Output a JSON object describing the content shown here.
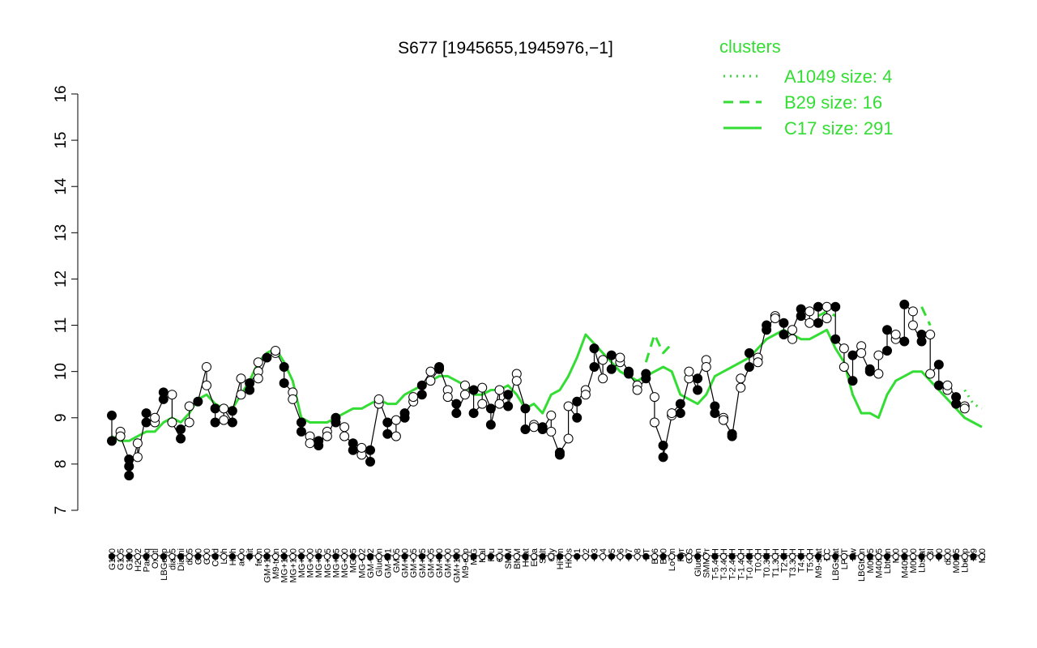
{
  "chart_data": {
    "type": "line",
    "title": "S677 [1945655,1945976,−1]",
    "xlabel": "",
    "ylabel": "",
    "ylim": [
      7,
      16
    ],
    "yticks": [
      7,
      8,
      9,
      10,
      11,
      12,
      13,
      14,
      15,
      16
    ],
    "grid": false,
    "legend": {
      "title": "clusters",
      "position": "top-right",
      "color": "#33dd33",
      "entries": [
        {
          "label": "A1049 size: 4",
          "style": "dotted"
        },
        {
          "label": "B29 size: 16",
          "style": "dashed"
        },
        {
          "label": "C17 size: 291",
          "style": "solid"
        }
      ]
    },
    "x_tick_labels": [
      "G150",
      "G135",
      "G180",
      "H2O2",
      "Paraq",
      "Oxctl",
      "LBGexp",
      "dia15",
      "Diami",
      "dia5",
      "C30",
      "C90",
      "Cold",
      "LPh",
      "HPh",
      "aero",
      "nit",
      "ferm",
      "GM+150",
      "M9-tran",
      "MG+150",
      "MG+120",
      "MG+90",
      "MG+60",
      "MG+45",
      "MG+25",
      "MG+15",
      "MG+10",
      "MG+5",
      "MG-0.2",
      "GM-0.2",
      "Glucon",
      "GM-0.1",
      "GM+5",
      "GM+10",
      "GM+15",
      "GM+25",
      "GM+45",
      "GM+60",
      "GM+90",
      "GM+120",
      "M9-exp",
      "M/G",
      "Mal",
      "Fru",
      "Glu",
      "SMM",
      "BMM",
      "Heat",
      "Etha",
      "Salt",
      "Gly",
      "HiTm",
      "HiOs",
      "S1",
      "S2",
      "S3",
      "S4",
      "S5",
      "S6",
      "S7",
      "S8",
      "BT",
      "B36",
      "B60",
      "LoTm",
      "Pyr",
      "G/S",
      "Glucon",
      "SMMPr",
      "T-5.40H",
      "T-3.40H",
      "T-2.40H",
      "T-1.40H",
      "T-0.40H",
      "T0.0H",
      "T0.30H",
      "T1.30H",
      "T2.0H",
      "T3.30H",
      "T4.0H",
      "T5.0H",
      "M9-stat",
      "BC",
      "LBGstat",
      "LPhT",
      "Sw",
      "LBGtran",
      "M0t45",
      "M40t45",
      "Lbtran",
      "Mt0",
      "M40t90",
      "M0t90",
      "Lbstat",
      "BI",
      "S0",
      "dia0",
      "M0t45",
      "Lbexp",
      "M9",
      "Mt0"
    ],
    "series": [
      {
        "style": "solid",
        "color": "#33dd33",
        "values": [
          8.6,
          8.5,
          8.5,
          8.6,
          8.7,
          8.7,
          8.9,
          9.0,
          8.9,
          9.1,
          9.4,
          9.5,
          9.3,
          9.2,
          9.2,
          9.5,
          9.8,
          10.2,
          10.4,
          10.5,
          10.2,
          9.8,
          9.0,
          8.9,
          8.9,
          8.9,
          9.0,
          9.1,
          9.2,
          9.2,
          9.3,
          9.4,
          9.3,
          9.3,
          9.5,
          9.6,
          9.7,
          9.8,
          9.9,
          9.9,
          9.8,
          9.7,
          9.5,
          9.5,
          9.6,
          9.6,
          9.7,
          9.5,
          9.2,
          9.3,
          9.1,
          9.5,
          9.6,
          9.9,
          10.3,
          10.8,
          10.6,
          10.4,
          10.2,
          10.0,
          9.9,
          9.8,
          9.9,
          10.0,
          10.1,
          10.0,
          9.5,
          9.4,
          9.3,
          9.5,
          9.9,
          10.0,
          10.1,
          10.2,
          10.3,
          10.5,
          10.7,
          10.8,
          10.9,
          10.8,
          10.7,
          10.7,
          10.8,
          10.9,
          10.5,
          10.2,
          9.5,
          9.1,
          9.1,
          9.0,
          9.5,
          9.8,
          9.9,
          10.0,
          10.0,
          9.8,
          9.6,
          9.4,
          9.2,
          9.0,
          8.9,
          8.8
        ]
      },
      {
        "style": "dashed",
        "color": "#33dd33",
        "values": [
          null,
          null,
          null,
          null,
          null,
          null,
          null,
          null,
          null,
          null,
          null,
          null,
          null,
          null,
          null,
          null,
          null,
          null,
          null,
          null,
          null,
          null,
          null,
          null,
          null,
          null,
          null,
          null,
          null,
          null,
          null,
          null,
          null,
          null,
          null,
          null,
          null,
          null,
          null,
          null,
          null,
          null,
          null,
          null,
          null,
          null,
          null,
          null,
          null,
          null,
          null,
          null,
          null,
          null,
          null,
          null,
          null,
          null,
          null,
          null,
          null,
          null,
          10.2,
          10.8,
          10.4,
          10.6,
          null,
          null,
          null,
          null,
          null,
          null,
          null,
          null,
          null,
          null,
          null,
          null,
          null,
          null,
          null,
          null,
          11.2,
          11.3,
          11.2,
          null,
          null,
          null,
          null,
          null,
          null,
          null,
          null,
          null,
          11.4,
          11.0,
          null,
          null,
          null,
          null,
          null,
          null
        ]
      },
      {
        "style": "dotted",
        "color": "#33dd33",
        "values": [
          null,
          null,
          null,
          null,
          null,
          null,
          null,
          null,
          null,
          null,
          null,
          null,
          null,
          null,
          null,
          null,
          null,
          null,
          null,
          null,
          null,
          null,
          null,
          null,
          null,
          null,
          null,
          null,
          null,
          null,
          null,
          null,
          null,
          null,
          null,
          null,
          null,
          null,
          null,
          null,
          null,
          null,
          null,
          null,
          null,
          null,
          null,
          null,
          null,
          null,
          null,
          null,
          null,
          null,
          null,
          null,
          null,
          null,
          null,
          null,
          null,
          null,
          null,
          null,
          null,
          null,
          null,
          null,
          null,
          null,
          null,
          null,
          null,
          null,
          null,
          null,
          null,
          null,
          null,
          null,
          null,
          null,
          null,
          null,
          null,
          null,
          null,
          null,
          null,
          null,
          null,
          null,
          null,
          null,
          null,
          null,
          null,
          null,
          null,
          9.6,
          9.3,
          9.2
        ]
      }
    ],
    "points": [
      {
        "x": 0,
        "y": 9.05
      },
      {
        "x": 0,
        "y": 8.5
      },
      {
        "x": 1,
        "y": 8.7
      },
      {
        "x": 1,
        "y": 8.6
      },
      {
        "x": 2,
        "y": 8.1
      },
      {
        "x": 2,
        "y": 7.95
      },
      {
        "x": 2,
        "y": 7.75
      },
      {
        "x": 3,
        "y": 8.45
      },
      {
        "x": 3,
        "y": 8.15
      },
      {
        "x": 4,
        "y": 9.1
      },
      {
        "x": 4,
        "y": 8.9
      },
      {
        "x": 5,
        "y": 8.9
      },
      {
        "x": 5,
        "y": 9.0
      },
      {
        "x": 6,
        "y": 9.4
      },
      {
        "x": 6,
        "y": 9.55
      },
      {
        "x": 7,
        "y": 9.5
      },
      {
        "x": 7,
        "y": 8.9
      },
      {
        "x": 8,
        "y": 8.55
      },
      {
        "x": 8,
        "y": 8.75
      },
      {
        "x": 9,
        "y": 8.9
      },
      {
        "x": 9,
        "y": 9.25
      },
      {
        "x": 10,
        "y": 9.35
      },
      {
        "x": 11,
        "y": 10.1
      },
      {
        "x": 11,
        "y": 9.7
      },
      {
        "x": 12,
        "y": 9.2
      },
      {
        "x": 12,
        "y": 8.9
      },
      {
        "x": 13,
        "y": 8.95
      },
      {
        "x": 13,
        "y": 9.2
      },
      {
        "x": 14,
        "y": 8.9
      },
      {
        "x": 14,
        "y": 9.15
      },
      {
        "x": 15,
        "y": 9.85
      },
      {
        "x": 15,
        "y": 9.5
      },
      {
        "x": 16,
        "y": 9.6
      },
      {
        "x": 16,
        "y": 9.75
      },
      {
        "x": 17,
        "y": 10.0
      },
      {
        "x": 17,
        "y": 10.2
      },
      {
        "x": 17,
        "y": 9.85
      },
      {
        "x": 18,
        "y": 10.3
      },
      {
        "x": 19,
        "y": 10.4
      },
      {
        "x": 19,
        "y": 10.45
      },
      {
        "x": 20,
        "y": 10.1
      },
      {
        "x": 20,
        "y": 9.75
      },
      {
        "x": 21,
        "y": 9.55
      },
      {
        "x": 21,
        "y": 9.4
      },
      {
        "x": 22,
        "y": 8.9
      },
      {
        "x": 22,
        "y": 8.7
      },
      {
        "x": 23,
        "y": 8.6
      },
      {
        "x": 23,
        "y": 8.45
      },
      {
        "x": 24,
        "y": 8.5
      },
      {
        "x": 24,
        "y": 8.4
      },
      {
        "x": 25,
        "y": 8.7
      },
      {
        "x": 25,
        "y": 8.6
      },
      {
        "x": 26,
        "y": 9.0
      },
      {
        "x": 26,
        "y": 8.9
      },
      {
        "x": 27,
        "y": 8.8
      },
      {
        "x": 27,
        "y": 8.6
      },
      {
        "x": 28,
        "y": 8.45
      },
      {
        "x": 28,
        "y": 8.3
      },
      {
        "x": 29,
        "y": 8.2
      },
      {
        "x": 29,
        "y": 8.35
      },
      {
        "x": 30,
        "y": 8.05
      },
      {
        "x": 30,
        "y": 8.3
      },
      {
        "x": 31,
        "y": 9.3
      },
      {
        "x": 31,
        "y": 9.4
      },
      {
        "x": 32,
        "y": 8.9
      },
      {
        "x": 32,
        "y": 8.65
      },
      {
        "x": 33,
        "y": 8.6
      },
      {
        "x": 33,
        "y": 8.95
      },
      {
        "x": 34,
        "y": 9.0
      },
      {
        "x": 34,
        "y": 9.1
      },
      {
        "x": 35,
        "y": 9.35
      },
      {
        "x": 35,
        "y": 9.45
      },
      {
        "x": 36,
        "y": 9.5
      },
      {
        "x": 36,
        "y": 9.7
      },
      {
        "x": 37,
        "y": 10.0
      },
      {
        "x": 37,
        "y": 9.8
      },
      {
        "x": 38,
        "y": 10.05
      },
      {
        "x": 38,
        "y": 10.1
      },
      {
        "x": 39,
        "y": 9.6
      },
      {
        "x": 39,
        "y": 9.45
      },
      {
        "x": 40,
        "y": 9.3
      },
      {
        "x": 40,
        "y": 9.1
      },
      {
        "x": 41,
        "y": 9.5
      },
      {
        "x": 41,
        "y": 9.7
      },
      {
        "x": 42,
        "y": 9.6
      },
      {
        "x": 42,
        "y": 9.1
      },
      {
        "x": 43,
        "y": 9.3
      },
      {
        "x": 43,
        "y": 9.65
      },
      {
        "x": 44,
        "y": 9.2
      },
      {
        "x": 44,
        "y": 8.85
      },
      {
        "x": 45,
        "y": 9.6
      },
      {
        "x": 45,
        "y": 9.3
      },
      {
        "x": 46,
        "y": 9.5
      },
      {
        "x": 46,
        "y": 9.25
      },
      {
        "x": 47,
        "y": 9.95
      },
      {
        "x": 47,
        "y": 9.8
      },
      {
        "x": 48,
        "y": 9.2
      },
      {
        "x": 48,
        "y": 8.75
      },
      {
        "x": 49,
        "y": 8.85
      },
      {
        "x": 49,
        "y": 8.8
      },
      {
        "x": 50,
        "y": 8.8
      },
      {
        "x": 50,
        "y": 8.75
      },
      {
        "x": 51,
        "y": 9.05
      },
      {
        "x": 51,
        "y": 8.7
      },
      {
        "x": 52,
        "y": 8.2
      },
      {
        "x": 52,
        "y": 8.25
      },
      {
        "x": 53,
        "y": 8.55
      },
      {
        "x": 53,
        "y": 9.25
      },
      {
        "x": 54,
        "y": 9.0
      },
      {
        "x": 54,
        "y": 9.35
      },
      {
        "x": 55,
        "y": 9.6
      },
      {
        "x": 55,
        "y": 9.5
      },
      {
        "x": 56,
        "y": 10.1
      },
      {
        "x": 56,
        "y": 10.5
      },
      {
        "x": 57,
        "y": 9.85
      },
      {
        "x": 57,
        "y": 10.25
      },
      {
        "x": 58,
        "y": 10.35
      },
      {
        "x": 58,
        "y": 10.05
      },
      {
        "x": 59,
        "y": 10.2
      },
      {
        "x": 59,
        "y": 10.3
      },
      {
        "x": 60,
        "y": 10.0
      },
      {
        "x": 60,
        "y": 9.95
      },
      {
        "x": 61,
        "y": 9.7
      },
      {
        "x": 61,
        "y": 9.6
      },
      {
        "x": 62,
        "y": 9.85
      },
      {
        "x": 62,
        "y": 9.95
      },
      {
        "x": 63,
        "y": 9.45
      },
      {
        "x": 63,
        "y": 8.9
      },
      {
        "x": 64,
        "y": 8.4
      },
      {
        "x": 64,
        "y": 8.15
      },
      {
        "x": 65,
        "y": 9.05
      },
      {
        "x": 65,
        "y": 9.1
      },
      {
        "x": 66,
        "y": 9.3
      },
      {
        "x": 66,
        "y": 9.1
      },
      {
        "x": 67,
        "y": 9.85
      },
      {
        "x": 67,
        "y": 10.0
      },
      {
        "x": 68,
        "y": 9.6
      },
      {
        "x": 68,
        "y": 9.85
      },
      {
        "x": 69,
        "y": 10.25
      },
      {
        "x": 69,
        "y": 10.1
      },
      {
        "x": 70,
        "y": 9.25
      },
      {
        "x": 70,
        "y": 9.1
      },
      {
        "x": 71,
        "y": 9.0
      },
      {
        "x": 71,
        "y": 8.95
      },
      {
        "x": 72,
        "y": 8.65
      },
      {
        "x": 72,
        "y": 8.6
      },
      {
        "x": 73,
        "y": 9.85
      },
      {
        "x": 73,
        "y": 9.65
      },
      {
        "x": 74,
        "y": 10.1
      },
      {
        "x": 74,
        "y": 10.4
      },
      {
        "x": 75,
        "y": 10.3
      },
      {
        "x": 75,
        "y": 10.2
      },
      {
        "x": 76,
        "y": 11.0
      },
      {
        "x": 76,
        "y": 10.9
      },
      {
        "x": 77,
        "y": 11.2
      },
      {
        "x": 77,
        "y": 11.15
      },
      {
        "x": 78,
        "y": 11.05
      },
      {
        "x": 78,
        "y": 10.8
      },
      {
        "x": 79,
        "y": 10.7
      },
      {
        "x": 79,
        "y": 10.9
      },
      {
        "x": 80,
        "y": 11.35
      },
      {
        "x": 80,
        "y": 11.2
      },
      {
        "x": 81,
        "y": 11.05
      },
      {
        "x": 81,
        "y": 11.3
      },
      {
        "x": 82,
        "y": 11.4
      },
      {
        "x": 82,
        "y": 11.05
      },
      {
        "x": 83,
        "y": 11.15
      },
      {
        "x": 83,
        "y": 11.4
      },
      {
        "x": 84,
        "y": 11.4
      },
      {
        "x": 84,
        "y": 10.7
      },
      {
        "x": 85,
        "y": 10.5
      },
      {
        "x": 85,
        "y": 10.1
      },
      {
        "x": 86,
        "y": 9.8
      },
      {
        "x": 86,
        "y": 10.35
      },
      {
        "x": 87,
        "y": 10.55
      },
      {
        "x": 87,
        "y": 10.4
      },
      {
        "x": 88,
        "y": 10.0
      },
      {
        "x": 88,
        "y": 10.05
      },
      {
        "x": 89,
        "y": 9.95
      },
      {
        "x": 89,
        "y": 10.35
      },
      {
        "x": 90,
        "y": 10.45
      },
      {
        "x": 90,
        "y": 10.9
      },
      {
        "x": 91,
        "y": 10.7
      },
      {
        "x": 91,
        "y": 10.8
      },
      {
        "x": 92,
        "y": 10.65
      },
      {
        "x": 92,
        "y": 11.45
      },
      {
        "x": 93,
        "y": 11.3
      },
      {
        "x": 93,
        "y": 11.0
      },
      {
        "x": 94,
        "y": 10.65
      },
      {
        "x": 94,
        "y": 10.8
      },
      {
        "x": 95,
        "y": 10.8
      },
      {
        "x": 95,
        "y": 9.95
      },
      {
        "x": 96,
        "y": 10.15
      },
      {
        "x": 96,
        "y": 9.7
      },
      {
        "x": 97,
        "y": 9.6
      },
      {
        "x": 97,
        "y": 9.7
      },
      {
        "x": 98,
        "y": 9.45
      },
      {
        "x": 98,
        "y": 9.3
      },
      {
        "x": 99,
        "y": 9.25
      },
      {
        "x": 99,
        "y": 9.2
      }
    ]
  }
}
